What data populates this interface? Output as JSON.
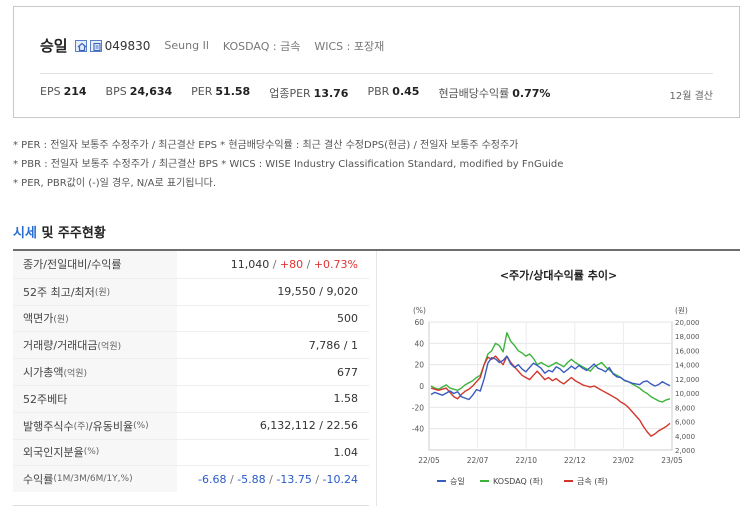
{
  "company": {
    "name": "승일",
    "code": "049830",
    "english_name": "Seung Il",
    "market": "KOSDAQ : 금속",
    "wics": "WICS : 포장재",
    "icons": [
      "home-icon",
      "report-icon"
    ]
  },
  "stats": [
    {
      "label": "EPS",
      "value": "214"
    },
    {
      "label": "BPS",
      "value": "24,634"
    },
    {
      "label": "PER",
      "value": "51.58"
    },
    {
      "label": "업종PER",
      "value": "13.76"
    },
    {
      "label": "PBR",
      "value": "0.45"
    },
    {
      "label": "현금배당수익률",
      "value": "0.77%"
    }
  ],
  "settlement": "12월 결산",
  "notes": [
    "* PER : 전일자 보통주 수정주가 / 최근결산 EPS * 현금배당수익률 : 최근 결산 수정DPS(현금) / 전일자 보통주 수정주가",
    "* PBR : 전일자 보통주 수정주가 / 최근결산 BPS * WICS : WISE Industry Classification Standard, modified by FnGuide",
    "* PER, PBR값이 (-)일 경우, N/A로 표기됩니다."
  ],
  "section": {
    "title_highlight": "시세",
    "title_rest": " 및 주주현황"
  },
  "table": {
    "rows": [
      {
        "label": "종가/전일대비/수익률",
        "unit": "(원)",
        "label_suffix": "",
        "v1": "11,040",
        "v2": "+80",
        "v3": "+0.73%"
      },
      {
        "label": "52주 최고/최저",
        "unit": "(원)",
        "value": "19,550 / 9,020"
      },
      {
        "label": "액면가",
        "unit": "(원)",
        "value": "500"
      },
      {
        "label": "거래량/거래대금",
        "unit": "(억원)",
        "value": "7,786 / 1"
      },
      {
        "label": "시가총액",
        "unit": "(억원)",
        "value": "677"
      },
      {
        "label": "52주베타",
        "unit": "",
        "value": "1.58"
      },
      {
        "label": "발행주식수",
        "unit": "(주)",
        "label_mid": "/유동비율",
        "unit2": "(%)",
        "value": "6,132,112 / 22.56"
      },
      {
        "label": "외국인지분율",
        "unit": "(%)",
        "value": "1.04"
      },
      {
        "label": "수익률",
        "unit": "(1M/3M/6M/1Y,%)",
        "r1": "-6.68",
        "r2": "-5.88",
        "r3": "-13.75",
        "r4": "-10.24"
      }
    ]
  },
  "chart_data": {
    "type": "line",
    "title": "<주가/상대수익률 추이>",
    "left_unit": "(%)",
    "right_unit": "(원)",
    "left_ticks": [
      "60",
      "40",
      "20",
      "0",
      "-20",
      "-40"
    ],
    "left_ylim": [
      -60,
      60
    ],
    "right_ticks": [
      "20,000",
      "18,000",
      "16,000",
      "14,000",
      "12,000",
      "10,000",
      "8,000",
      "6,000",
      "4,000",
      "2,000"
    ],
    "right_ylim": [
      2000,
      20000
    ],
    "x_ticks": [
      "22/05",
      "22/07",
      "22/10",
      "22/12",
      "23/02",
      "23/05"
    ],
    "grid": true,
    "legend_position": "bottom",
    "series": [
      {
        "name": "승일",
        "color": "#3a5cc0",
        "axis": "right",
        "values": [
          9800,
          10100,
          9900,
          9700,
          10000,
          10300,
          9950,
          10200,
          9500,
          9300,
          9100,
          9700,
          10500,
          10300,
          12000,
          14200,
          15000,
          14800,
          14300,
          14600,
          15200,
          14100,
          13600,
          14000,
          13400,
          13000,
          13600,
          14200,
          13900,
          13500,
          12800,
          13200,
          13000,
          13700,
          13400,
          12900,
          13300,
          13800,
          13400,
          13900,
          13500,
          13200,
          13600,
          14100,
          13500,
          13300,
          13000,
          13600,
          12700,
          12300,
          12200,
          11800,
          11600,
          11400,
          11300,
          11200,
          11600,
          11700,
          11300,
          11000,
          11200,
          11600,
          11300,
          11040
        ]
      },
      {
        "name": "KOSDAQ (좌)",
        "color": "#3cb43c",
        "axis": "left",
        "values": [
          0,
          -2,
          -3,
          -1,
          1,
          -2,
          -3,
          -4,
          -2,
          1,
          3,
          5,
          8,
          10,
          20,
          30,
          33,
          40,
          38,
          32,
          50,
          42,
          38,
          33,
          31,
          28,
          30,
          26,
          20,
          22,
          20,
          18,
          20,
          22,
          20,
          18,
          22,
          25,
          22,
          20,
          18,
          16,
          14,
          18,
          20,
          22,
          18,
          15,
          12,
          10,
          8,
          5,
          4,
          2,
          0,
          -2,
          -5,
          -7,
          -10,
          -12,
          -14,
          -15,
          -13,
          -12
        ]
      },
      {
        "name": "금속 (좌)",
        "color": "#d2372d",
        "axis": "left",
        "values": [
          -2,
          -3,
          -4,
          -3,
          -2,
          -6,
          -10,
          -12,
          -8,
          -5,
          -3,
          0,
          4,
          8,
          20,
          27,
          25,
          28,
          24,
          20,
          28,
          22,
          18,
          14,
          10,
          8,
          6,
          10,
          14,
          10,
          6,
          8,
          5,
          7,
          4,
          2,
          5,
          8,
          5,
          3,
          1,
          0,
          -1,
          0,
          -2,
          -4,
          -6,
          -8,
          -10,
          -12,
          -15,
          -17,
          -20,
          -24,
          -28,
          -32,
          -38,
          -43,
          -47,
          -45,
          -42,
          -40,
          -38,
          -35
        ]
      }
    ]
  }
}
